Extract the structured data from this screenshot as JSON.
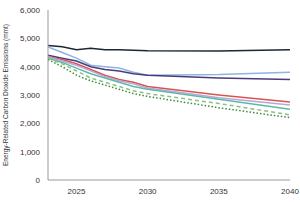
{
  "chart_data": {
    "type": "line",
    "y_label": "Energy-Related Carbon Dioxide Emissions (mmt)",
    "x": [
      2023,
      2024,
      2025,
      2026,
      2027,
      2028,
      2029,
      2030,
      2035,
      2040
    ],
    "xlim": [
      2023,
      2040
    ],
    "xticks": [
      2025,
      2030,
      2035,
      2040
    ],
    "ylim": [
      0,
      6000
    ],
    "yticks": [
      0,
      {
        "value": 1000,
        "label": "1,000"
      },
      {
        "value": 2000,
        "label": "2,000"
      },
      {
        "value": 3000,
        "label": "3,000"
      },
      {
        "value": 4000,
        "label": "4,000"
      },
      {
        "value": 5000,
        "label": "5,000"
      },
      {
        "value": 6000,
        "label": "6,000"
      }
    ],
    "grid": false,
    "series": [
      {
        "color": "#1c2733",
        "line_style": "solid",
        "values": [
          4750,
          4700,
          4600,
          4650,
          4600,
          4600,
          4580,
          4560,
          4550,
          4600
        ]
      },
      {
        "color": "#8fb4e3",
        "line_style": "solid",
        "values": [
          4700,
          4500,
          4300,
          4050,
          4000,
          3950,
          3800,
          3700,
          3720,
          3800
        ]
      },
      {
        "color": "#4a3c7a",
        "line_style": "solid",
        "values": [
          4400,
          4300,
          4200,
          4000,
          3900,
          3850,
          3750,
          3700,
          3600,
          3550
        ]
      },
      {
        "color": "#d9534f",
        "line_style": "solid",
        "values": [
          4350,
          4250,
          4100,
          3900,
          3700,
          3550,
          3450,
          3300,
          3000,
          2750
        ]
      },
      {
        "color": "#b9a7d6",
        "line_style": "solid",
        "values": [
          4350,
          4200,
          4050,
          3850,
          3650,
          3500,
          3400,
          3250,
          2900,
          2650
        ]
      },
      {
        "color": "#5cb8a8",
        "line_style": "solid",
        "values": [
          4300,
          4150,
          3950,
          3750,
          3600,
          3450,
          3300,
          3200,
          2850,
          2500
        ]
      },
      {
        "color": "#8cc084",
        "line_style": "dashed",
        "values": [
          4300,
          4100,
          3850,
          3600,
          3450,
          3300,
          3150,
          3050,
          2700,
          2300
        ]
      },
      {
        "color": "#3a8a3a",
        "line_style": "dotted",
        "values": [
          4250,
          4000,
          3700,
          3500,
          3350,
          3200,
          3050,
          2950,
          2550,
          2200
        ]
      }
    ]
  }
}
